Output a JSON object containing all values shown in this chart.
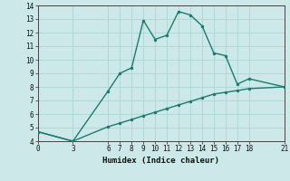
{
  "line1_x": [
    0,
    3,
    6,
    7,
    8,
    9,
    10,
    11,
    12,
    13,
    14,
    15,
    16,
    17,
    18,
    21
  ],
  "line1_y": [
    4.7,
    4.0,
    7.7,
    9.0,
    9.4,
    12.9,
    11.5,
    11.8,
    13.55,
    13.3,
    12.5,
    10.5,
    10.3,
    8.2,
    8.6,
    8.0
  ],
  "line2_x": [
    0,
    3,
    6,
    7,
    8,
    9,
    10,
    11,
    12,
    13,
    14,
    15,
    16,
    17,
    18,
    21
  ],
  "line2_y": [
    4.7,
    4.0,
    5.07,
    5.33,
    5.6,
    5.87,
    6.13,
    6.4,
    6.67,
    6.93,
    7.2,
    7.47,
    7.6,
    7.73,
    7.87,
    8.0
  ],
  "color": "#1d7a6e",
  "bg_color": "#cce8e8",
  "grid_color": "#b0d8d8",
  "xlabel": "Humidex (Indice chaleur)",
  "xlim": [
    0,
    21
  ],
  "ylim": [
    4,
    14
  ],
  "xticks": [
    0,
    3,
    6,
    7,
    8,
    9,
    10,
    11,
    12,
    13,
    14,
    15,
    16,
    17,
    18,
    21
  ],
  "yticks": [
    4,
    5,
    6,
    7,
    8,
    9,
    10,
    11,
    12,
    13,
    14
  ],
  "markersize": 2.5,
  "linewidth": 1.0
}
